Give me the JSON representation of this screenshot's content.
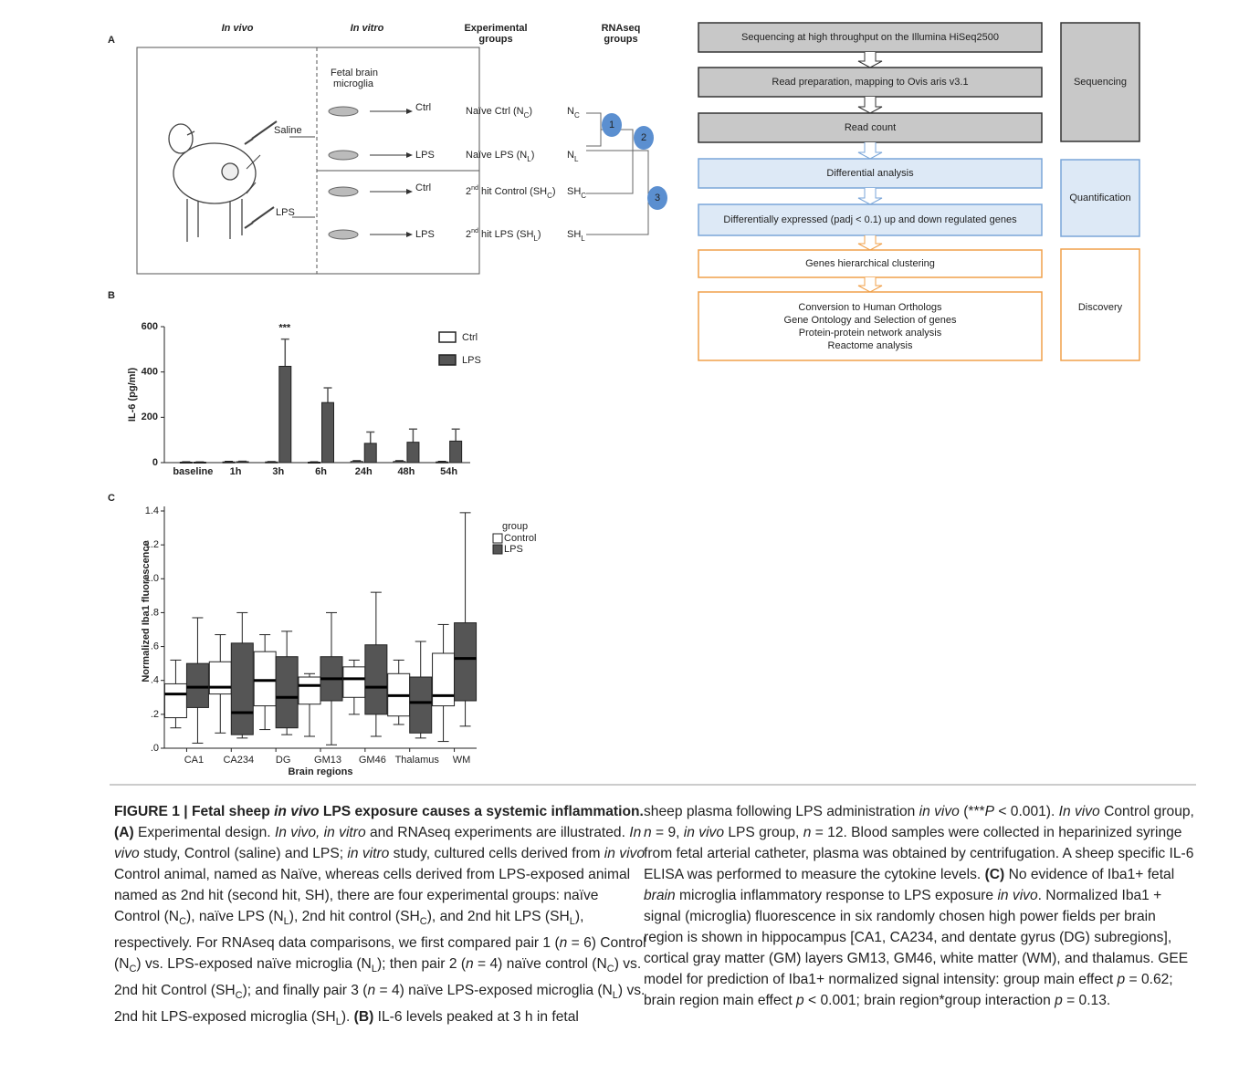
{
  "panel_labels": [
    "A",
    "B",
    "C"
  ],
  "design": {
    "headers": [
      [
        "In vivo"
      ],
      [
        "In vitro"
      ],
      [
        "Experimental",
        "groups"
      ],
      [
        "RNAseq",
        "groups"
      ]
    ],
    "tissue": [
      "Fetal brain",
      "microglia"
    ],
    "treatments": [
      "Saline",
      "LPS"
    ],
    "culture": [
      "Ctrl",
      "LPS",
      "Ctrl",
      "LPS"
    ],
    "groups": [
      [
        {
          "t": "Naïve Ctrl (N"
        },
        {
          "t": "C",
          "s": "sub"
        },
        {
          "t": ")"
        }
      ],
      [
        {
          "t": "Naïve LPS (N"
        },
        {
          "t": "L",
          "s": "sub"
        },
        {
          "t": ")"
        }
      ],
      [
        {
          "t": "2"
        },
        {
          "t": "nd",
          "s": "sup"
        },
        {
          "t": " hit Control (SH"
        },
        {
          "t": "C",
          "s": "sub"
        },
        {
          "t": ")"
        }
      ],
      [
        {
          "t": "2"
        },
        {
          "t": "nd",
          "s": "sup"
        },
        {
          "t": " hit LPS  (SH"
        },
        {
          "t": "L",
          "s": "sub"
        },
        {
          "t": ")"
        }
      ]
    ],
    "rnaseq": [
      [
        {
          "t": "N"
        },
        {
          "t": "C",
          "s": "sub"
        }
      ],
      [
        {
          "t": "N"
        },
        {
          "t": "L",
          "s": "sub"
        }
      ],
      [
        {
          "t": "SH"
        },
        {
          "t": "C",
          "s": "sub"
        }
      ],
      [
        {
          "t": "SH"
        },
        {
          "t": "L",
          "s": "sub"
        }
      ]
    ],
    "pairs": [
      "1",
      "2",
      "3"
    ]
  },
  "flow": [
    {
      "name": "Sequencing",
      "steps": [
        [
          "Sequencing at high throughput on the Illumina HiSeq2500"
        ],
        [
          "Read preparation, mapping to Ovis aris v3.1"
        ],
        [
          "Read count"
        ]
      ]
    },
    {
      "name": "Quantification",
      "steps": [
        [
          "Differential analysis"
        ],
        [
          "Differentially expressed (padj < 0.1) up and down regulated genes"
        ]
      ]
    },
    {
      "name": "Discovery",
      "steps": [
        [
          "Genes hierarchical clustering"
        ],
        [
          "Conversion to Human Orthologs",
          "Gene Ontology and Selection of genes",
          "Protein-protein network analysis",
          "Reactome analysis"
        ]
      ]
    }
  ],
  "chart_data": [
    {
      "type": "bar",
      "y_label": "IL-6 (pg/ml)",
      "categories": [
        "baseline",
        "1h",
        "3h",
        "6h",
        "24h",
        "48h",
        "54h"
      ],
      "series": [
        {
          "name": "Ctrl",
          "color": "#ffffff",
          "values": [
            2,
            3,
            3,
            2,
            5,
            5,
            3
          ],
          "errors": [
            1,
            2,
            1,
            1,
            3,
            3,
            2
          ]
        },
        {
          "name": "LPS",
          "color": "#555555",
          "values": [
            2,
            4,
            425,
            265,
            85,
            90,
            95
          ],
          "errors": [
            1,
            2,
            120,
            65,
            50,
            58,
            53
          ]
        }
      ],
      "annotation": "***",
      "annotation_category": "3h",
      "ylim": [
        0,
        600
      ],
      "yticks": [
        0,
        200,
        400,
        600
      ]
    },
    {
      "type": "box",
      "y_label": "Normalized Iba1 fluorescence",
      "x_label": "Brain regions",
      "legend_title": "group",
      "categories": [
        "CA1",
        "CA234",
        "DG",
        "GM13",
        "GM46",
        "Thalamus",
        "WM"
      ],
      "series": [
        {
          "name": "Control",
          "color": "#ffffff",
          "low": [
            0.12,
            0.09,
            0.11,
            0.07,
            0.2,
            0.14,
            0.04
          ],
          "q1": [
            0.18,
            0.32,
            0.25,
            0.26,
            0.3,
            0.19,
            0.25
          ],
          "median": [
            0.32,
            0.36,
            0.4,
            0.37,
            0.41,
            0.31,
            0.31
          ],
          "q3": [
            0.38,
            0.51,
            0.57,
            0.42,
            0.48,
            0.44,
            0.56
          ],
          "high": [
            0.52,
            0.67,
            0.67,
            0.44,
            0.52,
            0.52,
            0.73
          ]
        },
        {
          "name": "LPS",
          "color": "#555555",
          "low": [
            0.03,
            0.06,
            0.08,
            0.02,
            0.07,
            0.06,
            0.13
          ],
          "q1": [
            0.24,
            0.08,
            0.12,
            0.28,
            0.2,
            0.09,
            0.28
          ],
          "median": [
            0.36,
            0.21,
            0.3,
            0.41,
            0.36,
            0.27,
            0.53
          ],
          "q3": [
            0.5,
            0.62,
            0.54,
            0.54,
            0.61,
            0.42,
            0.74
          ],
          "high": [
            0.77,
            0.8,
            0.69,
            0.8,
            0.92,
            0.63,
            1.39
          ]
        }
      ],
      "ylim": [
        0,
        1.4
      ],
      "yticks": [
        {
          "value": 0,
          "label": ".0"
        },
        {
          "value": 0.2,
          "label": ".2"
        },
        {
          "value": 0.4,
          "label": ".4"
        },
        {
          "value": 0.6,
          "label": ".6"
        },
        {
          "value": 0.8,
          "label": ".8"
        },
        {
          "value": 1,
          "label": "1.0"
        },
        1.2,
        1.4
      ]
    }
  ],
  "caption": {
    "left": [
      {
        "t": "FIGURE 1 | Fetal sheep ",
        "s": "b"
      },
      {
        "t": "in vivo",
        "s": "bi"
      },
      {
        "t": " LPS exposure causes a systemic inflammation. (A)",
        "s": "b"
      },
      {
        "t": " Experimental design. "
      },
      {
        "t": "In vivo, in vitro",
        "s": "i"
      },
      {
        "t": " and RNAseq experiments are illustrated. "
      },
      {
        "t": "In vivo",
        "s": "i"
      },
      {
        "t": " study, Control (saline) and LPS; "
      },
      {
        "t": "in vitro",
        "s": "i"
      },
      {
        "t": " study, cultured cells derived from "
      },
      {
        "t": "in vivo",
        "s": "i"
      },
      {
        "t": " Control animal, named as Naïve, whereas cells derived from LPS-exposed animal named as 2nd hit (second hit, SH), there are four experimental groups: naïve Control (N"
      },
      {
        "t": "C",
        "s": "sub"
      },
      {
        "t": "), naïve LPS (N"
      },
      {
        "t": "L",
        "s": "sub"
      },
      {
        "t": "), 2nd hit control (SH"
      },
      {
        "t": "C",
        "s": "sub"
      },
      {
        "t": "), and 2nd hit LPS (SH"
      },
      {
        "t": "L",
        "s": "sub"
      },
      {
        "t": "), respectively. For RNAseq data comparisons, we first compared pair 1 ("
      },
      {
        "t": "n",
        "s": "i"
      },
      {
        "t": " = 6) Control (N"
      },
      {
        "t": "C",
        "s": "sub"
      },
      {
        "t": ") vs. LPS-exposed naïve microglia (N"
      },
      {
        "t": "L",
        "s": "sub"
      },
      {
        "t": "); then pair 2 ("
      },
      {
        "t": "n",
        "s": "i"
      },
      {
        "t": " = 4) naïve control (N"
      },
      {
        "t": "C",
        "s": "sub"
      },
      {
        "t": ") vs. 2nd hit Control (SH"
      },
      {
        "t": "C",
        "s": "sub"
      },
      {
        "t": "); and finally pair 3 ("
      },
      {
        "t": "n",
        "s": "i"
      },
      {
        "t": " = 4) naïve LPS-exposed microglia (N"
      },
      {
        "t": "L",
        "s": "sub"
      },
      {
        "t": ") vs. 2nd hit LPS-exposed microglia (SH"
      },
      {
        "t": "L",
        "s": "sub"
      },
      {
        "t": "). "
      },
      {
        "t": "(B)",
        "s": "b"
      },
      {
        "t": " IL-6 levels peaked at 3 h in fetal"
      }
    ],
    "right": [
      {
        "t": "sheep plasma following LPS administration "
      },
      {
        "t": "in vivo",
        "s": "i"
      },
      {
        "t": " (***"
      },
      {
        "t": "P",
        "s": "i"
      },
      {
        "t": " < 0.001). "
      },
      {
        "t": "In vivo",
        "s": "i"
      },
      {
        "t": " Control group, "
      },
      {
        "t": "n",
        "s": "i"
      },
      {
        "t": " = 9, "
      },
      {
        "t": "in vivo",
        "s": "i"
      },
      {
        "t": " LPS group, "
      },
      {
        "t": "n",
        "s": "i"
      },
      {
        "t": " = 12. Blood samples were collected in heparinized syringe from fetal arterial catheter, plasma was obtained by centrifugation. A sheep specific IL-6 ELISA was performed to measure the cytokine levels. "
      },
      {
        "t": "(C)",
        "s": "b"
      },
      {
        "t": " No evidence of Iba1+ fetal "
      },
      {
        "t": "brain",
        "s": "i"
      },
      {
        "t": " microglia inflammatory response to LPS exposure "
      },
      {
        "t": "in vivo",
        "s": "i"
      },
      {
        "t": ". Normalized Iba1 + signal (microglia) fluorescence in six randomly chosen high power fields per brain region is shown in hippocampus [CA1, CA234, and dentate gyrus (DG) subregions], cortical gray matter (GM) layers GM13, GM46, white matter (WM), and thalamus. GEE model for prediction of Iba1+ normalized signal intensity: group main effect "
      },
      {
        "t": "p",
        "s": "i"
      },
      {
        "t": " = 0.62; brain region main effect "
      },
      {
        "t": "p",
        "s": "i"
      },
      {
        "t": " < 0.001; brain region*group interaction "
      },
      {
        "t": "p",
        "s": "i"
      },
      {
        "t": " = 0.13."
      }
    ]
  }
}
